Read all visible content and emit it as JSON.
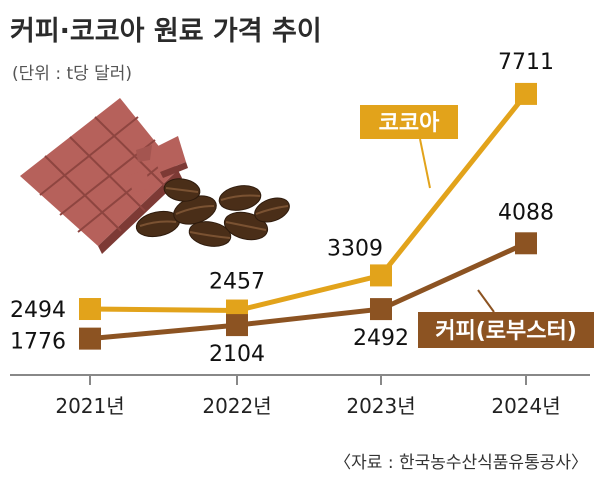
{
  "title": "커피·코코아 원료 가격 추이",
  "subtitle": "(단위 : t당 달러)",
  "source": "〈자료 : 한국농수산식품유통공사〉",
  "colors": {
    "cocoa": "#e2a31b",
    "coffee": "#8c5322",
    "axis": "#888888",
    "chocolate": "#b6615b",
    "bean": "#4a2e18"
  },
  "illustration": {
    "chocolate": "chocolate-bar-icon",
    "beans": "coffee-beans-icon"
  },
  "chart_data": {
    "type": "line",
    "title": "커피·코코아 원료 가격 추이",
    "subtitle": "(단위 : t당 달러)",
    "categories": [
      "2021년",
      "2022년",
      "2023년",
      "2024년"
    ],
    "series": [
      {
        "name": "코코아",
        "values": [
          2494,
          2457,
          3309,
          7711
        ],
        "labels": [
          "2494",
          "2457",
          "3309",
          "7711"
        ]
      },
      {
        "name": "커피(로부스터)",
        "values": [
          1776,
          2104,
          2492,
          4088
        ],
        "labels": [
          "1776",
          "2104",
          "2492",
          "4088"
        ]
      }
    ],
    "ylim": [
      1500,
      8000
    ],
    "grid": false,
    "legend": "inline-labels"
  }
}
